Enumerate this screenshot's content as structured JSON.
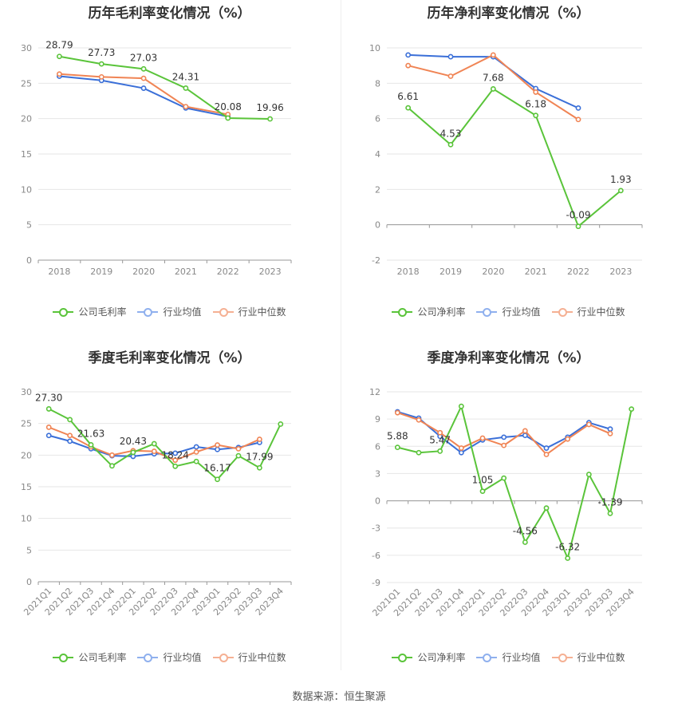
{
  "source": "数据来源：恒生聚源",
  "legend_common": {
    "industry_avg": "行业均值",
    "industry_median": "行业中位数"
  },
  "colors": {
    "company": "#5ac43a",
    "industry_avg": "#3a6fd8",
    "industry_median": "#f08454",
    "grid": "#e6e6e6",
    "axis": "#cccccc"
  },
  "chart_data": [
    {
      "id": "annual-gross",
      "type": "line",
      "title": "历年毛利率变化情况（%）",
      "x": [
        "2018",
        "2019",
        "2020",
        "2021",
        "2022",
        "2023"
      ],
      "ylim": [
        0,
        30
      ],
      "yticks": [
        0,
        5,
        10,
        15,
        20,
        25,
        30
      ],
      "series": [
        {
          "name": "公司毛利率",
          "key": "company",
          "values": [
            28.79,
            27.73,
            27.03,
            24.31,
            20.08,
            19.96
          ]
        },
        {
          "name": "行业均值",
          "key": "industry_avg",
          "values": [
            26.0,
            25.4,
            24.3,
            21.5,
            20.3,
            null
          ]
        },
        {
          "name": "行业中位数",
          "key": "industry_median",
          "values": [
            26.3,
            25.9,
            25.7,
            21.7,
            20.6,
            null
          ]
        }
      ],
      "data_labels": [
        "28.79",
        "27.73",
        "27.03",
        "24.31",
        "20.08",
        "19.96"
      ],
      "rotate_x": false
    },
    {
      "id": "annual-net",
      "type": "line",
      "title": "历年净利率变化情况（%）",
      "x": [
        "2018",
        "2019",
        "2020",
        "2021",
        "2022",
        "2023"
      ],
      "ylim": [
        -2,
        10
      ],
      "yticks": [
        -2,
        0,
        2,
        4,
        6,
        8,
        10
      ],
      "series": [
        {
          "name": "公司净利率",
          "key": "company",
          "values": [
            6.61,
            4.53,
            7.68,
            6.18,
            -0.09,
            1.93
          ]
        },
        {
          "name": "行业均值",
          "key": "industry_avg",
          "values": [
            9.6,
            9.5,
            9.5,
            7.7,
            6.6,
            null
          ]
        },
        {
          "name": "行业中位数",
          "key": "industry_median",
          "values": [
            9.0,
            8.4,
            9.6,
            7.5,
            5.95,
            null
          ]
        }
      ],
      "data_labels": [
        "6.61",
        "4.53",
        "7.68",
        "6.18",
        "-0.09",
        "1.93"
      ],
      "rotate_x": false
    },
    {
      "id": "quarterly-gross",
      "type": "line",
      "title": "季度毛利率变化情况（%）",
      "x": [
        "2021Q1",
        "2021Q2",
        "2021Q3",
        "2021Q4",
        "2022Q1",
        "2022Q2",
        "2022Q3",
        "2022Q4",
        "2023Q1",
        "2023Q2",
        "2023Q3",
        "2023Q4"
      ],
      "ylim": [
        0,
        30
      ],
      "yticks": [
        0,
        5,
        10,
        15,
        20,
        25,
        30
      ],
      "series": [
        {
          "name": "公司毛利率",
          "key": "company",
          "values": [
            27.3,
            25.6,
            21.63,
            18.3,
            20.43,
            21.8,
            18.24,
            19.0,
            16.17,
            19.9,
            17.99,
            24.9
          ]
        },
        {
          "name": "行业均值",
          "key": "industry_avg",
          "values": [
            23.1,
            22.2,
            21.0,
            19.9,
            19.8,
            20.2,
            20.3,
            21.3,
            20.9,
            21.2,
            22.0,
            null
          ]
        },
        {
          "name": "行业中位数",
          "key": "industry_median",
          "values": [
            24.4,
            23.1,
            21.3,
            20.0,
            20.7,
            20.6,
            19.2,
            20.5,
            21.6,
            21.0,
            22.5,
            null
          ]
        }
      ],
      "data_labels": [
        "27.30",
        "",
        "21.63",
        "",
        "20.43",
        "",
        "18.24",
        "",
        "16.17",
        "",
        "17.99",
        ""
      ],
      "rotate_x": true
    },
    {
      "id": "quarterly-net",
      "type": "line",
      "title": "季度净利率变化情况（%）",
      "x": [
        "2021Q1",
        "2021Q2",
        "2021Q3",
        "2021Q4",
        "2022Q1",
        "2022Q2",
        "2022Q3",
        "2022Q4",
        "2023Q1",
        "2023Q2",
        "2023Q3",
        "2023Q4"
      ],
      "ylim": [
        -9,
        12
      ],
      "yticks": [
        -9,
        -6,
        -3,
        0,
        3,
        6,
        9,
        12
      ],
      "series": [
        {
          "name": "公司净利率",
          "key": "company",
          "values": [
            5.88,
            5.3,
            5.47,
            10.4,
            1.05,
            2.5,
            -4.56,
            -0.8,
            -6.32,
            2.9,
            -1.39,
            10.1
          ]
        },
        {
          "name": "行业均值",
          "key": "industry_avg",
          "values": [
            9.8,
            9.1,
            7.1,
            5.3,
            6.7,
            7.0,
            7.2,
            5.8,
            7.0,
            8.6,
            7.9,
            null
          ]
        },
        {
          "name": "行业中位数",
          "key": "industry_median",
          "values": [
            9.7,
            8.9,
            7.5,
            5.8,
            6.9,
            6.1,
            7.7,
            5.1,
            6.8,
            8.4,
            7.4,
            null
          ]
        }
      ],
      "data_labels": [
        "5.88",
        "",
        "5.47",
        "",
        "1.05",
        "",
        "-4.56",
        "",
        "-6.32",
        "",
        "-1.39",
        ""
      ],
      "rotate_x": true
    }
  ]
}
